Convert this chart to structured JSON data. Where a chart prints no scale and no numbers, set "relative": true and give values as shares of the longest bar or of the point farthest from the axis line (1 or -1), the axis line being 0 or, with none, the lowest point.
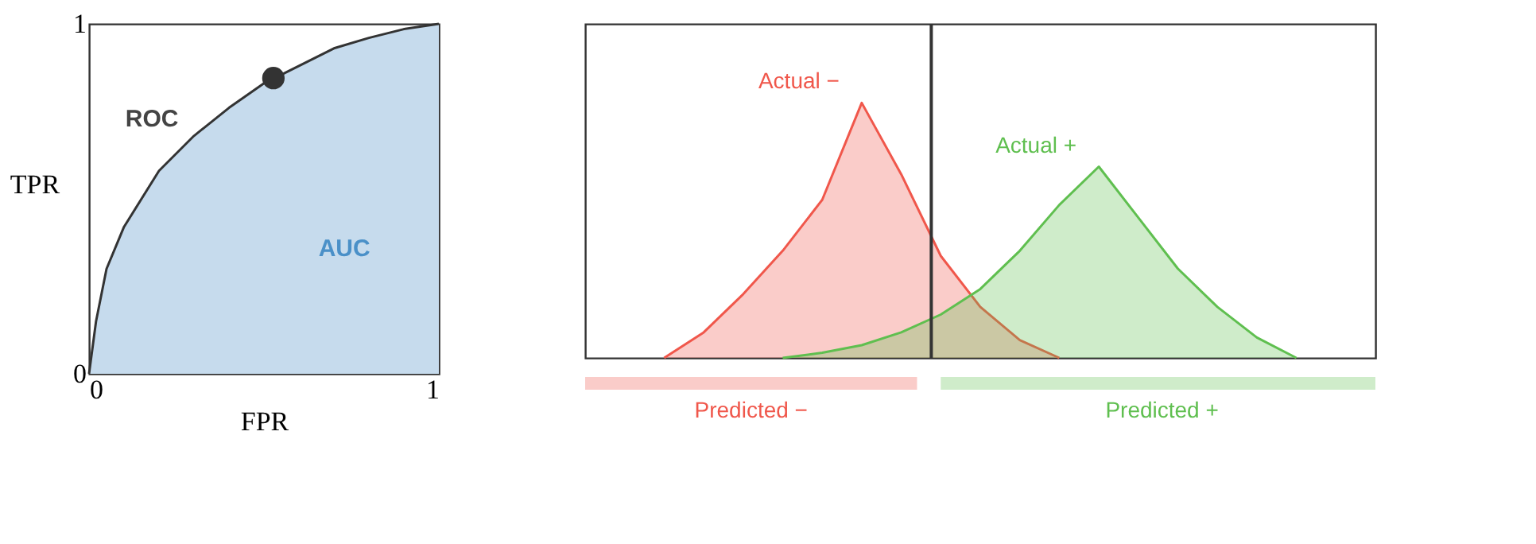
{
  "chart_data": [
    {
      "type": "area",
      "xlabel": "FPR",
      "ylabel": "TPR",
      "xlim": [
        0,
        1
      ],
      "ylim": [
        0,
        1
      ],
      "xticks": [
        0,
        1
      ],
      "yticks": [
        0,
        1
      ],
      "grid": false,
      "legend": false,
      "series": [
        {
          "type": "area",
          "color": "#c6dbed",
          "x": [
            0,
            0.02,
            0.05,
            0.1,
            0.2,
            0.3,
            0.4,
            0.5,
            0.6,
            0.7,
            0.8,
            0.9,
            1
          ],
          "values": [
            0,
            0.15,
            0.3,
            0.42,
            0.58,
            0.68,
            0.76,
            0.83,
            0.88,
            0.93,
            0.96,
            0.985,
            1
          ]
        },
        {
          "type": "scatter",
          "color": "#333333",
          "x": [
            0.527
          ],
          "values": [
            0.845
          ]
        }
      ],
      "annotations": [
        "ROC",
        "AUC"
      ]
    },
    {
      "type": "area",
      "relative": true,
      "grid": false,
      "legend": false,
      "categories": [
        null,
        null,
        null,
        null,
        null,
        null,
        null,
        null,
        null,
        null,
        null,
        null,
        null,
        null,
        null,
        null,
        null,
        null,
        null,
        null,
        null
      ],
      "series": [
        {
          "name": "Actual −",
          "color": "#f0574b",
          "values": [
            null,
            null,
            0,
            0.1,
            0.25,
            0.42,
            0.62,
            1,
            0.72,
            0.4,
            0.2,
            0.07,
            0,
            null,
            null,
            null,
            null,
            null,
            null,
            null,
            null
          ]
        },
        {
          "name": "Actual +",
          "color": "#5fbf4f",
          "values": [
            null,
            null,
            null,
            null,
            null,
            0,
            0.02,
            0.05,
            0.1,
            0.17,
            0.27,
            0.42,
            0.6,
            0.75,
            0.55,
            0.35,
            0.2,
            0.08,
            0,
            null,
            null
          ]
        }
      ],
      "annotations": [
        "Predicted −",
        "Predicted +"
      ]
    }
  ]
}
